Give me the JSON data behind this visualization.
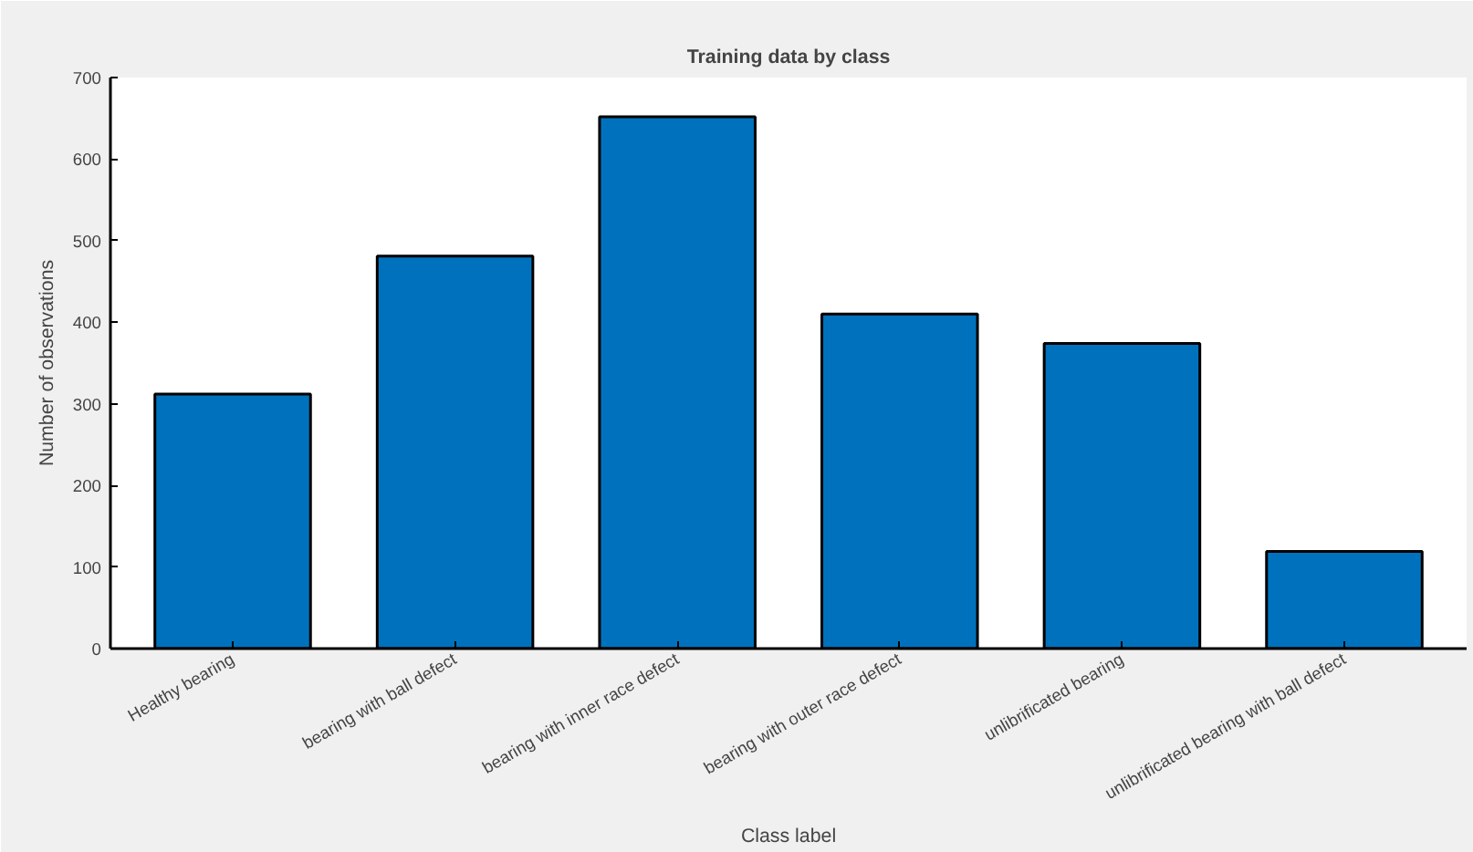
{
  "chart_data": {
    "type": "bar",
    "title": "Training data by class",
    "xlabel": "Class label",
    "ylabel": "Number of observations",
    "categories": [
      "Healthy bearing",
      "bearing with ball defect",
      "bearing with inner race defect",
      "bearing with outer race defect",
      "unlibrificated bearing",
      "unlibrificated bearing with ball defect"
    ],
    "values": [
      312,
      481,
      652,
      410,
      374,
      119
    ],
    "color": "#0072bd",
    "ylim": [
      0,
      700
    ],
    "yticks": [
      0,
      100,
      200,
      300,
      400,
      500,
      600,
      700
    ],
    "grid": false
  }
}
